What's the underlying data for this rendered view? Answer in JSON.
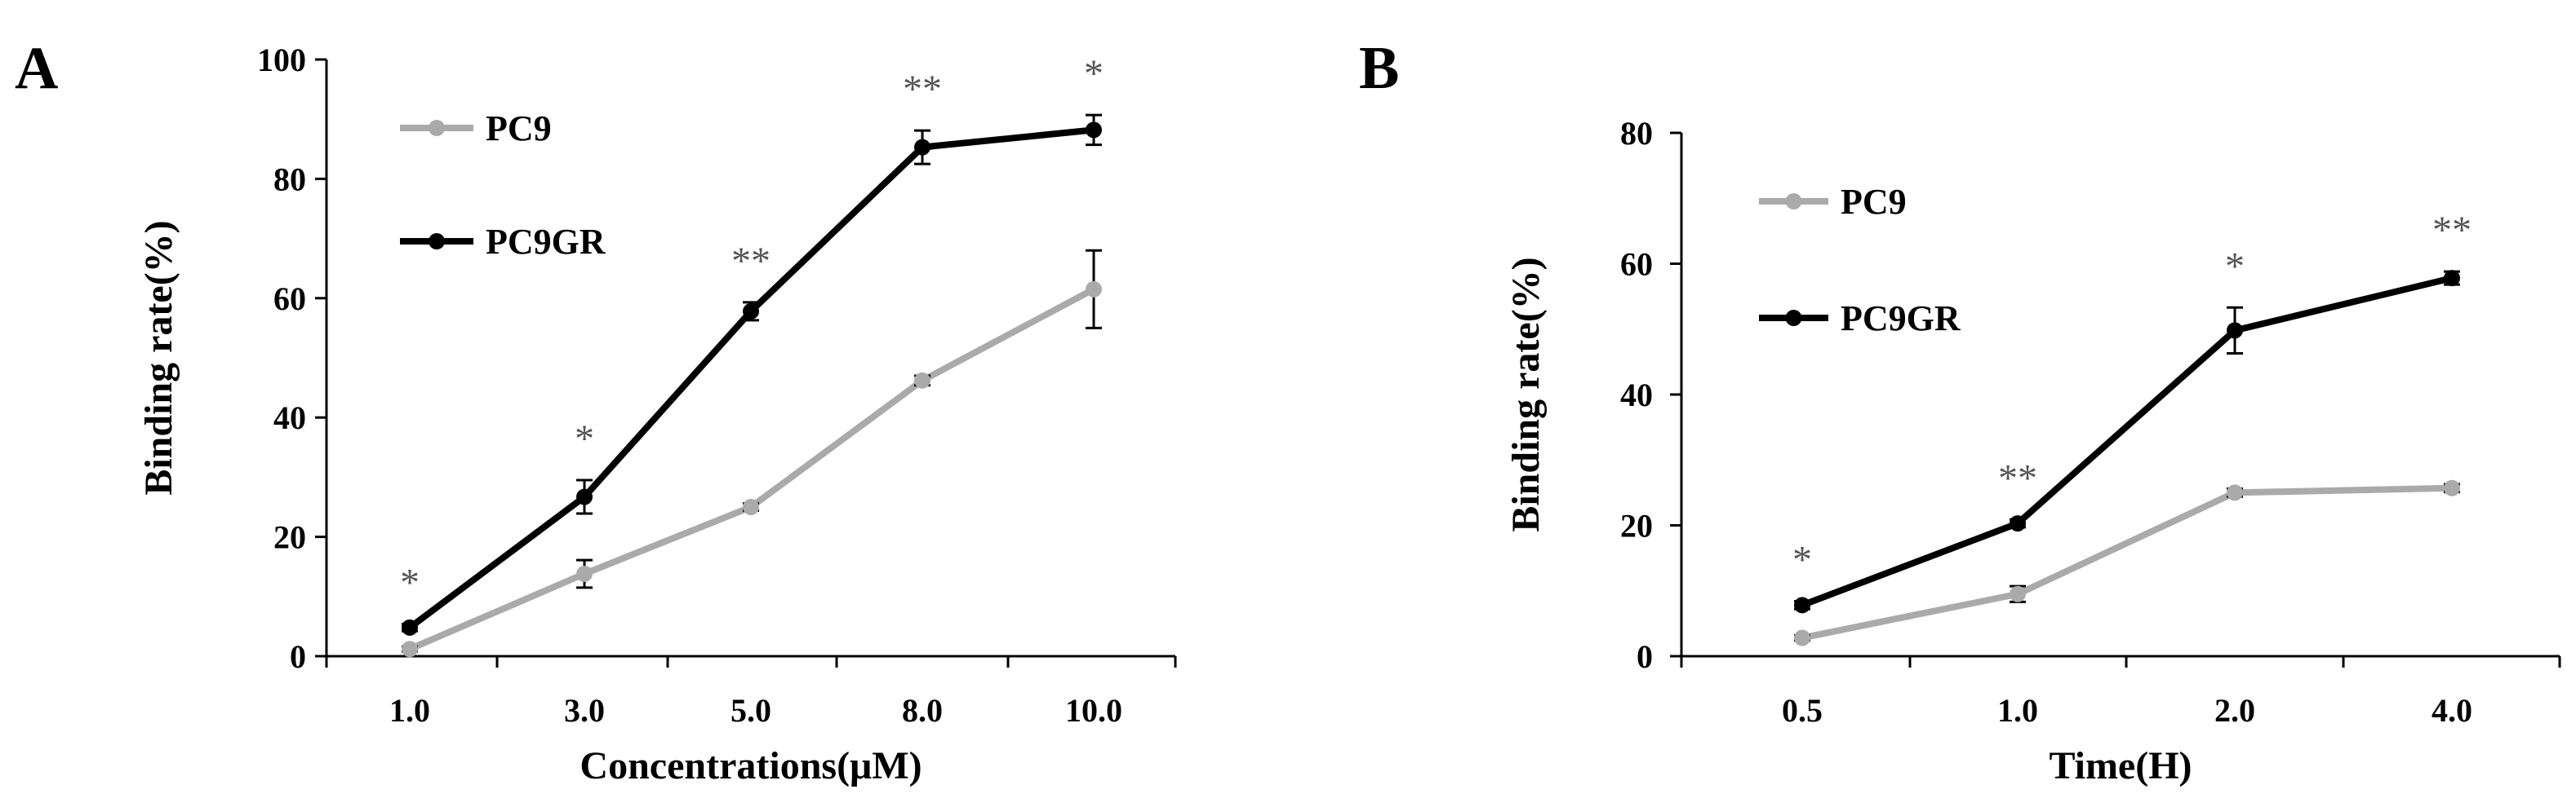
{
  "chart_data": [
    {
      "type": "line",
      "panel_label": "A",
      "title": "",
      "xlabel": "Concentrations(μM)",
      "ylabel": "Binding rate(%)",
      "categories": [
        "1.0",
        "3.0",
        "5.0",
        "8.0",
        "10.0"
      ],
      "ylim": [
        0,
        100
      ],
      "yticks": [
        "0",
        "20",
        "40",
        "60",
        "80",
        "100"
      ],
      "grid": false,
      "legend_position": "top-left",
      "series": [
        {
          "name": "PC9",
          "color": "#aaaaaa",
          "values": [
            1.2,
            13.8,
            25.0,
            46.2,
            61.5
          ],
          "errors": [
            0.4,
            2.3,
            0.6,
            0.8,
            6.5
          ]
        },
        {
          "name": "PC9GR",
          "color": "#000000",
          "values": [
            4.8,
            26.7,
            57.8,
            85.3,
            88.2
          ],
          "errors": [
            0.6,
            2.8,
            1.5,
            2.8,
            2.5
          ]
        }
      ],
      "significance": [
        "*",
        "*",
        "**",
        "**",
        "*"
      ]
    },
    {
      "type": "line",
      "panel_label": "B",
      "title": "",
      "xlabel": "Time(H)",
      "ylabel": "Binding rate(%)",
      "categories": [
        "0.5",
        "1.0",
        "2.0",
        "4.0"
      ],
      "ylim": [
        0,
        80
      ],
      "yticks": [
        "0",
        "20",
        "40",
        "60",
        "80"
      ],
      "grid": false,
      "legend_position": "top-left",
      "series": [
        {
          "name": "PC9",
          "color": "#aaaaaa",
          "values": [
            2.8,
            9.5,
            25.0,
            25.7
          ],
          "errors": [
            0.4,
            1.2,
            0.6,
            0.6
          ]
        },
        {
          "name": "PC9GR",
          "color": "#000000",
          "values": [
            7.8,
            20.3,
            49.8,
            57.8
          ],
          "errors": [
            0.6,
            0.6,
            3.5,
            1.0
          ]
        }
      ],
      "significance": [
        "*",
        "**",
        "*",
        "**"
      ]
    }
  ]
}
